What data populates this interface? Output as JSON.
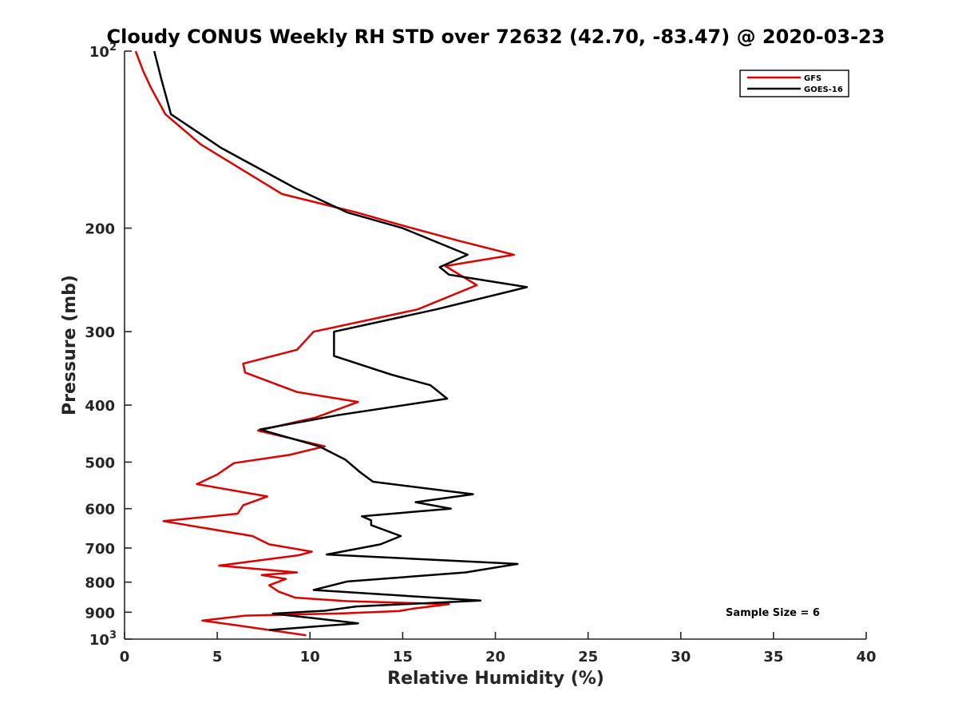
{
  "chart_data": {
    "type": "line",
    "title": "Cloudy CONUS Weekly RH STD over 72632 (42.70, -83.47) @ 2020-03-23",
    "xlabel": "Relative Humidity (%)",
    "ylabel": "Pressure (mb)",
    "xlim": [
      0,
      40
    ],
    "ylim": [
      100,
      1000
    ],
    "y_scale": "log",
    "y_reversed": true,
    "grid": false,
    "legend_position": "top-right",
    "x_ticks": [
      "0",
      "5",
      "10",
      "15",
      "20",
      "25",
      "30",
      "35",
      "40"
    ],
    "y_ticks": [
      {
        "value": 100,
        "base": "10",
        "exp": "2"
      },
      {
        "value": 200,
        "label": "200"
      },
      {
        "value": 300,
        "label": "300"
      },
      {
        "value": 400,
        "label": "400"
      },
      {
        "value": 500,
        "label": "500"
      },
      {
        "value": 600,
        "label": "600"
      },
      {
        "value": 700,
        "label": "700"
      },
      {
        "value": 800,
        "label": "800"
      },
      {
        "value": 900,
        "label": "900"
      },
      {
        "value": 1000,
        "base": "10",
        "exp": "3"
      }
    ],
    "annotation": "Sample Size = 6",
    "series": [
      {
        "name": "GFS",
        "color": "#e00000",
        "points": [
          [
            0.6,
            100
          ],
          [
            1.0,
            108
          ],
          [
            1.4,
            115
          ],
          [
            2.2,
            128
          ],
          [
            4.1,
            144
          ],
          [
            8.5,
            175
          ],
          [
            12.5,
            188
          ],
          [
            15.0,
            198
          ],
          [
            18.0,
            210
          ],
          [
            21.0,
            222
          ],
          [
            17.3,
            232
          ],
          [
            19.0,
            250
          ],
          [
            15.8,
            275
          ],
          [
            10.2,
            300
          ],
          [
            9.3,
            322
          ],
          [
            6.4,
            340
          ],
          [
            6.5,
            352
          ],
          [
            9.3,
            380
          ],
          [
            12.6,
            395
          ],
          [
            10.3,
            420
          ],
          [
            7.2,
            442
          ],
          [
            10.8,
            470
          ],
          [
            8.9,
            486
          ],
          [
            5.9,
            502
          ],
          [
            5.0,
            525
          ],
          [
            3.9,
            545
          ],
          [
            7.7,
            572
          ],
          [
            6.4,
            592
          ],
          [
            6.1,
            612
          ],
          [
            2.1,
            630
          ],
          [
            6.9,
            668
          ],
          [
            7.8,
            690
          ],
          [
            10.1,
            710
          ],
          [
            9.4,
            720
          ],
          [
            5.1,
            750
          ],
          [
            9.3,
            770
          ],
          [
            7.4,
            778
          ],
          [
            8.7,
            790
          ],
          [
            7.8,
            810
          ],
          [
            8.3,
            830
          ],
          [
            9.2,
            850
          ],
          [
            12.0,
            862
          ],
          [
            17.5,
            872
          ],
          [
            15.6,
            887
          ],
          [
            14.8,
            896
          ],
          [
            11.8,
            904
          ],
          [
            6.5,
            912
          ],
          [
            4.2,
            930
          ],
          [
            6.1,
            948
          ],
          [
            9.8,
            985
          ]
        ]
      },
      {
        "name": "GOES-16",
        "color": "#000000",
        "points": [
          [
            1.6,
            100
          ],
          [
            2.0,
            112
          ],
          [
            2.5,
            128
          ],
          [
            5.2,
            146
          ],
          [
            9.2,
            171
          ],
          [
            12.0,
            188
          ],
          [
            15.0,
            200
          ],
          [
            18.5,
            222
          ],
          [
            17.0,
            233
          ],
          [
            17.5,
            240
          ],
          [
            21.7,
            252
          ],
          [
            16.8,
            275
          ],
          [
            11.3,
            300
          ],
          [
            11.3,
            330
          ],
          [
            14.4,
            355
          ],
          [
            16.5,
            370
          ],
          [
            17.4,
            390
          ],
          [
            11.5,
            416
          ],
          [
            7.3,
            440
          ],
          [
            10.5,
            470
          ],
          [
            11.9,
            495
          ],
          [
            12.7,
            520
          ],
          [
            13.4,
            540
          ],
          [
            18.8,
            567
          ],
          [
            15.7,
            585
          ],
          [
            17.6,
            600
          ],
          [
            12.8,
            618
          ],
          [
            13.3,
            628
          ],
          [
            13.3,
            640
          ],
          [
            14.9,
            668
          ],
          [
            13.8,
            690
          ],
          [
            10.9,
            718
          ],
          [
            21.2,
            745
          ],
          [
            18.4,
            770
          ],
          [
            12.0,
            798
          ],
          [
            10.2,
            825
          ],
          [
            19.2,
            860
          ],
          [
            12.5,
            880
          ],
          [
            10.8,
            895
          ],
          [
            8.0,
            905
          ],
          [
            10.0,
            920
          ],
          [
            12.6,
            940
          ],
          [
            7.8,
            965
          ]
        ]
      }
    ]
  }
}
